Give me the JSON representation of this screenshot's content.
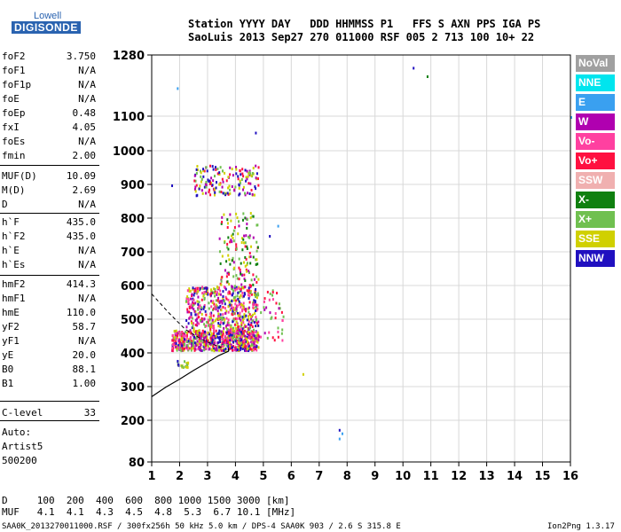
{
  "logo": {
    "top": "Lowell",
    "main": "DIGISONDE"
  },
  "header": {
    "line1": "Station YYYY DAY   DDD HHMMSS P1   FFS S AXN PPS IGA PS",
    "line2": "SaoLuis 2013 Sep27 270 011000 RSF 005 2 713 100 10+ 22"
  },
  "params": [
    {
      "label": "foF2",
      "value": "3.750"
    },
    {
      "label": "foF1",
      "value": "N/A"
    },
    {
      "label": "foF1p",
      "value": "N/A"
    },
    {
      "label": "foE",
      "value": "N/A"
    },
    {
      "label": "foEp",
      "value": "0.48"
    },
    {
      "label": "fxI",
      "value": "4.05"
    },
    {
      "label": "foEs",
      "value": "N/A"
    },
    {
      "label": "fmin",
      "value": "2.00"
    },
    {
      "label": "MUF(D)",
      "value": "10.09"
    },
    {
      "label": "M(D)",
      "value": "2.69"
    },
    {
      "label": "D",
      "value": "N/A"
    },
    {
      "label": "h`F",
      "value": "435.0"
    },
    {
      "label": "h`F2",
      "value": "435.0"
    },
    {
      "label": "h`E",
      "value": "N/A"
    },
    {
      "label": "h`Es",
      "value": "N/A"
    },
    {
      "label": "hmF2",
      "value": "414.3"
    },
    {
      "label": "hmF1",
      "value": "N/A"
    },
    {
      "label": "hmE",
      "value": "110.0"
    },
    {
      "label": "yF2",
      "value": "58.7"
    },
    {
      "label": "yF1",
      "value": "N/A"
    },
    {
      "label": "yE",
      "value": "20.0"
    },
    {
      "label": "B0",
      "value": "88.1"
    },
    {
      "label": "B1",
      "value": "1.00"
    },
    {
      "label": "C-level",
      "value": "33"
    }
  ],
  "auto": {
    "line1": "Auto:",
    "line2": "Artist5",
    "line3": "500200"
  },
  "legend": [
    {
      "label": "NoVal",
      "color": "#a0a0a0"
    },
    {
      "label": "NNE",
      "color": "#00e5ee"
    },
    {
      "label": "E",
      "color": "#3aa0f0"
    },
    {
      "label": "W",
      "color": "#b000b0"
    },
    {
      "label": "Vo-",
      "color": "#ff40a0"
    },
    {
      "label": "Vo+",
      "color": "#ff1040"
    },
    {
      "label": "SSW",
      "color": "#f0b0b0"
    },
    {
      "label": "X-",
      "color": "#108010"
    },
    {
      "label": "X+",
      "color": "#70c050"
    },
    {
      "label": "SSE",
      "color": "#d0d000"
    },
    {
      "label": "NNW",
      "color": "#2010c0"
    }
  ],
  "footer": {
    "d_row": "D     100  200  400  600  800 1000 1500 3000 [km]",
    "muf_row": "MUF   4.1  4.1  4.3  4.5  4.8  5.3  6.7 10.1 [MHz]",
    "file_line": "SAA0K_2013270011000.RSF / 300fx256h 50 kHz 5.0 km / DPS-4 SAA0K 903 / 2.6 S 315.8 E",
    "version": "Ion2Png 1.3.17"
  },
  "chart_data": {
    "type": "scatter",
    "xlim": [
      1,
      16
    ],
    "ylim": [
      80,
      1280
    ],
    "xticks": [
      1,
      2,
      3,
      4,
      5,
      6,
      7,
      8,
      9,
      10,
      11,
      12,
      13,
      14,
      15,
      16
    ],
    "yticks": [
      80,
      200,
      300,
      400,
      500,
      600,
      700,
      800,
      900,
      1000,
      1100,
      1280
    ],
    "ytick_labels": [
      "80",
      "200",
      "300",
      "400",
      "500",
      "600",
      "700",
      "800",
      "900",
      "1000",
      "1100",
      "1280"
    ],
    "grid": true,
    "clusters": [
      {
        "x": [
          1.7,
          4.8
        ],
        "y": [
          410,
          470
        ],
        "density": 700,
        "colors": [
          "W",
          "Vo+",
          "Vo-",
          "NNW",
          "SSE",
          "X+"
        ]
      },
      {
        "x": [
          2.2,
          4.8
        ],
        "y": [
          470,
          600
        ],
        "density": 500,
        "colors": [
          "SSE",
          "W",
          "Vo+",
          "NNW",
          "X+",
          "Vo-"
        ]
      },
      {
        "x": [
          3.4,
          4.8
        ],
        "y": [
          600,
          820
        ],
        "density": 140,
        "colors": [
          "SSE",
          "W",
          "Vo+",
          "X-",
          "X+"
        ]
      },
      {
        "x": [
          2.5,
          4.8
        ],
        "y": [
          870,
          960
        ],
        "density": 160,
        "colors": [
          "SSE",
          "W",
          "NNW",
          "X+",
          "Vo+"
        ]
      },
      {
        "x": [
          4.8,
          5.7
        ],
        "y": [
          440,
          600
        ],
        "density": 40,
        "colors": [
          "W",
          "Vo+",
          "X+",
          "Vo-"
        ]
      },
      {
        "x": [
          1.9,
          2.3
        ],
        "y": [
          360,
          380
        ],
        "density": 20,
        "colors": [
          "X+",
          "NNW",
          "SSE"
        ]
      }
    ],
    "points": [
      {
        "x": 1.9,
        "y": 1185,
        "c": "E"
      },
      {
        "x": 10.35,
        "y": 1245,
        "c": "NNW"
      },
      {
        "x": 10.85,
        "y": 1220,
        "c": "X-"
      },
      {
        "x": 16.0,
        "y": 1100,
        "c": "E"
      },
      {
        "x": 4.7,
        "y": 1055,
        "c": "NNW"
      },
      {
        "x": 5.5,
        "y": 780,
        "c": "E"
      },
      {
        "x": 6.4,
        "y": 340,
        "c": "SSE"
      },
      {
        "x": 7.7,
        "y": 175,
        "c": "NNW"
      },
      {
        "x": 7.8,
        "y": 165,
        "c": "E"
      },
      {
        "x": 7.7,
        "y": 150,
        "c": "E"
      },
      {
        "x": 1.7,
        "y": 900,
        "c": "NNW"
      },
      {
        "x": 5.2,
        "y": 750,
        "c": "NNW"
      }
    ],
    "profile": [
      {
        "x": 1.0,
        "y": 270
      },
      {
        "x": 1.5,
        "y": 298
      },
      {
        "x": 2.0,
        "y": 322
      },
      {
        "x": 2.5,
        "y": 348
      },
      {
        "x": 3.0,
        "y": 372
      },
      {
        "x": 3.4,
        "y": 392
      },
      {
        "x": 3.75,
        "y": 405
      },
      {
        "x": 3.75,
        "y": 414
      }
    ],
    "profile_dashed": [
      {
        "x": 1.0,
        "y": 575
      },
      {
        "x": 1.6,
        "y": 520
      },
      {
        "x": 2.2,
        "y": 470
      },
      {
        "x": 2.8,
        "y": 440
      },
      {
        "x": 3.2,
        "y": 425
      },
      {
        "x": 3.5,
        "y": 416
      }
    ]
  }
}
